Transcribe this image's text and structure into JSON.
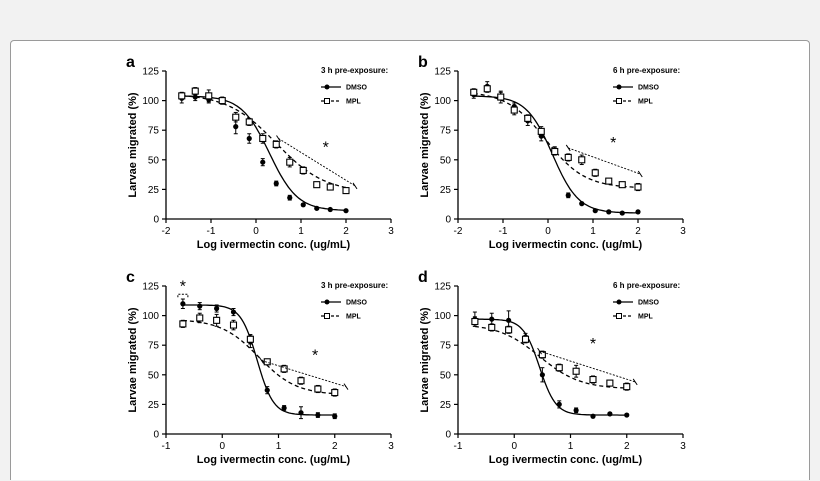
{
  "figure": {
    "panels": [
      {
        "letter": "a",
        "legend_title": "3 h pre-exposure:",
        "legend_entries": [
          "DMSO",
          "MPL"
        ],
        "significance": "*",
        "xlabel": "Log ivermectin conc.  (ug/mL)",
        "ylabel": "Larvae migrated  (%)",
        "xlim": [
          -2,
          3
        ],
        "ylim": [
          0,
          125
        ],
        "xticks": [
          -2,
          -1,
          0,
          1,
          2,
          3
        ],
        "yticks": [
          0,
          25,
          50,
          75,
          100,
          125
        ]
      },
      {
        "letter": "b",
        "legend_title": "6 h pre-exposure:",
        "legend_entries": [
          "DMSO",
          "MPL"
        ],
        "significance": "*",
        "xlabel": "Log ivermectin conc.  (ug/mL)",
        "ylabel": "Larvae migrated  (%)",
        "xlim": [
          -2,
          3
        ],
        "ylim": [
          0,
          125
        ],
        "xticks": [
          -2,
          -1,
          0,
          1,
          2,
          3
        ],
        "yticks": [
          0,
          25,
          50,
          75,
          100,
          125
        ]
      },
      {
        "letter": "c",
        "legend_title": "3 h pre-exposure:",
        "legend_entries": [
          "DMSO",
          "MPL"
        ],
        "significance": "*",
        "xlabel": "Log ivermectin conc.  (ug/mL)",
        "ylabel": "Larvae migrated  (%)",
        "xlim": [
          -1,
          3
        ],
        "ylim": [
          0,
          125
        ],
        "xticks": [
          -1,
          0,
          1,
          2,
          3
        ],
        "yticks": [
          0,
          25,
          50,
          75,
          100,
          125
        ]
      },
      {
        "letter": "d",
        "legend_title": "6 h pre-exposure:",
        "legend_entries": [
          "DMSO",
          "MPL"
        ],
        "significance": "*",
        "xlabel": "Log ivermectin conc.  (ug/mL)",
        "ylabel": "Larvae migrated  (%)",
        "xlim": [
          -1,
          3
        ],
        "ylim": [
          0,
          125
        ],
        "xticks": [
          -1,
          0,
          1,
          2,
          3
        ],
        "yticks": [
          0,
          25,
          50,
          75,
          100,
          125
        ]
      }
    ]
  },
  "chart_data": [
    {
      "type": "scatter",
      "xlabel": "Log ivermectin conc.  (ug/mL)",
      "ylabel": "Larvae migrated  (%)",
      "xlim": [
        -2,
        3
      ],
      "ylim": [
        0,
        125
      ],
      "grid": false,
      "legend": "top-right",
      "series": [
        {
          "name": "DMSO",
          "x": [
            -1.65,
            -1.35,
            -1.05,
            -0.75,
            -0.45,
            -0.15,
            0.15,
            0.45,
            0.75,
            1.05,
            1.35,
            1.65,
            2.0
          ],
          "y": [
            102,
            103,
            101,
            99,
            78,
            68,
            48,
            30,
            18,
            12,
            9,
            8,
            7
          ]
        },
        {
          "name": "MPL",
          "x": [
            -1.65,
            -1.35,
            -1.05,
            -0.75,
            -0.45,
            -0.15,
            0.15,
            0.45,
            0.75,
            1.05,
            1.35,
            1.65,
            2.0
          ],
          "y": [
            104,
            108,
            104,
            100,
            86,
            82,
            68,
            63,
            48,
            41,
            29,
            27,
            24
          ]
        }
      ]
    },
    {
      "type": "scatter",
      "xlabel": "Log ivermectin conc.  (ug/mL)",
      "ylabel": "Larvae migrated  (%)",
      "xlim": [
        -2,
        3
      ],
      "ylim": [
        0,
        125
      ],
      "grid": false,
      "legend": "top-right",
      "series": [
        {
          "name": "DMSO",
          "x": [
            -1.65,
            -1.35,
            -1.05,
            -0.75,
            -0.45,
            -0.15,
            0.15,
            0.45,
            0.75,
            1.05,
            1.35,
            1.65,
            2.0
          ],
          "y": [
            105,
            112,
            104,
            95,
            83,
            70,
            58,
            20,
            13,
            7,
            6,
            5,
            6
          ]
        },
        {
          "name": "MPL",
          "x": [
            -1.65,
            -1.35,
            -1.05,
            -0.75,
            -0.45,
            -0.15,
            0.15,
            0.45,
            0.75,
            1.05,
            1.35,
            1.65,
            2.0
          ],
          "y": [
            107,
            110,
            103,
            92,
            85,
            74,
            57,
            52,
            50,
            39,
            32,
            29,
            27
          ]
        }
      ]
    },
    {
      "type": "scatter",
      "xlabel": "Log ivermectin conc.  (ug/mL)",
      "ylabel": "Larvae migrated  (%)",
      "xlim": [
        -1,
        3
      ],
      "ylim": [
        0,
        125
      ],
      "grid": false,
      "legend": "top-right",
      "series": [
        {
          "name": "DMSO",
          "x": [
            -0.7,
            -0.4,
            -0.1,
            0.2,
            0.5,
            0.8,
            1.1,
            1.4,
            1.7,
            2.0
          ],
          "y": [
            110,
            108,
            106,
            103,
            78,
            37,
            22,
            18,
            16,
            15
          ]
        },
        {
          "name": "MPL",
          "x": [
            -0.7,
            -0.4,
            -0.1,
            0.2,
            0.5,
            0.8,
            1.1,
            1.4,
            1.7,
            2.0
          ],
          "y": [
            93,
            98,
            96,
            92,
            80,
            61,
            55,
            45,
            38,
            35
          ]
        }
      ]
    },
    {
      "type": "scatter",
      "xlabel": "Log ivermectin conc.  (ug/mL)",
      "ylabel": "Larvae migrated  (%)",
      "xlim": [
        -1,
        3
      ],
      "ylim": [
        0,
        125
      ],
      "grid": false,
      "legend": "top-right",
      "series": [
        {
          "name": "DMSO",
          "x": [
            -0.7,
            -0.4,
            -0.1,
            0.2,
            0.5,
            0.8,
            1.1,
            1.4,
            1.7,
            2.0
          ],
          "y": [
            97,
            97,
            96,
            82,
            50,
            25,
            20,
            15,
            17,
            16
          ]
        },
        {
          "name": "MPL",
          "x": [
            -0.7,
            -0.4,
            -0.1,
            0.2,
            0.5,
            0.8,
            1.1,
            1.4,
            1.7,
            2.0
          ],
          "y": [
            95,
            90,
            88,
            80,
            67,
            56,
            53,
            46,
            43,
            40
          ]
        }
      ]
    }
  ]
}
